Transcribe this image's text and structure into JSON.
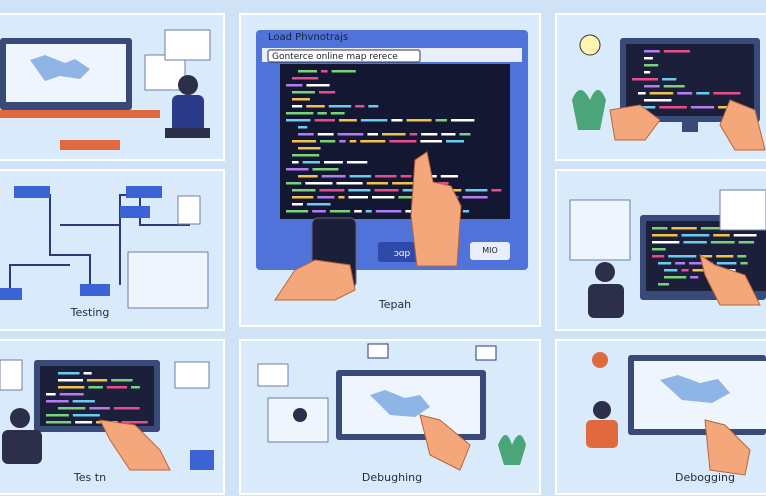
{
  "panels": {
    "center": {
      "window_title": "Load Phvnotrajs",
      "subtitle": "Gonterce online map rerece",
      "button_left": "ɔɑp",
      "button_right": "MIO",
      "caption": "Tepah"
    },
    "middle_left": {
      "caption": "Testing"
    },
    "bottom_left": {
      "caption": "Tes tn"
    },
    "bottom_center": {
      "caption": "Debughing"
    },
    "bottom_right": {
      "caption": "Debogging"
    }
  }
}
